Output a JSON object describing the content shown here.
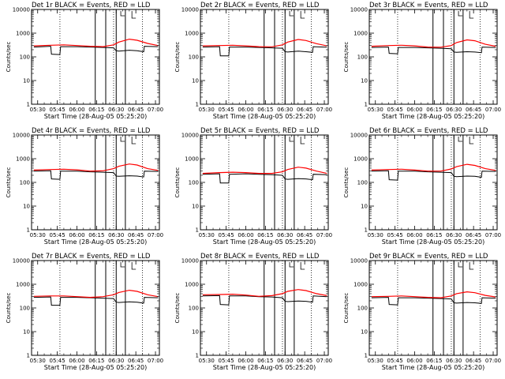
{
  "chart_data": {
    "type": "line",
    "layout": "3x3 grid",
    "xlabel": "Start Time (28-Aug-05 05:25:20)",
    "ylabel": "Counts/sec",
    "yscale": "log",
    "ylim": [
      1,
      10000
    ],
    "y_ticks": [
      "1",
      "10",
      "100",
      "1000",
      "10000"
    ],
    "x_ticks": [
      "05:30",
      "05:45",
      "06:00",
      "06:15",
      "06:30",
      "06:45",
      "07:00"
    ],
    "x_minutes": [
      0,
      15,
      30,
      45,
      60,
      75,
      90
    ],
    "xlim_minutes": [
      -4.67,
      93
    ],
    "solid_lines_minutes": [
      44,
      52,
      60,
      67
    ],
    "dotted_lines_minutes": [
      17,
      58,
      80
    ],
    "colors": {
      "events": "#000000",
      "lld": "#ff0000"
    },
    "series_names": [
      "BLACK = Events",
      "RED = LLD"
    ],
    "panels": [
      {
        "title": "Det 1r BLACK = Events, RED = LLD",
        "lld": [
          [
            -3,
            290
          ],
          [
            10,
            310
          ],
          [
            20,
            320
          ],
          [
            30,
            300
          ],
          [
            40,
            280
          ],
          [
            50,
            270
          ],
          [
            58,
            320
          ],
          [
            62,
            420
          ],
          [
            70,
            560
          ],
          [
            76,
            500
          ],
          [
            84,
            370
          ],
          [
            92,
            300
          ]
        ],
        "events": [
          [
            -3,
            260
          ],
          [
            10,
            280
          ],
          [
            10.5,
            130
          ],
          [
            17,
            125
          ],
          [
            17.5,
            270
          ],
          [
            30,
            270
          ],
          [
            40,
            260
          ],
          [
            50,
            250
          ],
          [
            58,
            240
          ],
          [
            60,
            180
          ],
          [
            62,
            175
          ],
          [
            70,
            190
          ],
          [
            76,
            180
          ],
          [
            81,
            165
          ],
          [
            81.5,
            280
          ],
          [
            92,
            270
          ]
        ]
      },
      {
        "title": "Det 2r BLACK = Events, RED = LLD",
        "lld": [
          [
            -3,
            290
          ],
          [
            10,
            300
          ],
          [
            20,
            310
          ],
          [
            30,
            290
          ],
          [
            40,
            270
          ],
          [
            50,
            265
          ],
          [
            58,
            320
          ],
          [
            62,
            420
          ],
          [
            70,
            540
          ],
          [
            76,
            490
          ],
          [
            84,
            360
          ],
          [
            92,
            290
          ]
        ],
        "events": [
          [
            -3,
            260
          ],
          [
            10,
            270
          ],
          [
            10.5,
            110
          ],
          [
            17,
            110
          ],
          [
            17.5,
            260
          ],
          [
            30,
            260
          ],
          [
            40,
            250
          ],
          [
            50,
            240
          ],
          [
            58,
            230
          ],
          [
            60,
            165
          ],
          [
            62,
            160
          ],
          [
            70,
            175
          ],
          [
            76,
            165
          ],
          [
            81,
            155
          ],
          [
            81.5,
            270
          ],
          [
            92,
            255
          ]
        ]
      },
      {
        "title": "Det 3r BLACK = Events, RED = LLD",
        "lld": [
          [
            -3,
            280
          ],
          [
            10,
            300
          ],
          [
            20,
            310
          ],
          [
            30,
            290
          ],
          [
            40,
            260
          ],
          [
            50,
            255
          ],
          [
            58,
            300
          ],
          [
            62,
            400
          ],
          [
            70,
            520
          ],
          [
            76,
            480
          ],
          [
            84,
            340
          ],
          [
            92,
            280
          ]
        ],
        "events": [
          [
            -3,
            250
          ],
          [
            10,
            260
          ],
          [
            10.5,
            140
          ],
          [
            17,
            135
          ],
          [
            17.5,
            250
          ],
          [
            30,
            250
          ],
          [
            40,
            240
          ],
          [
            50,
            230
          ],
          [
            58,
            220
          ],
          [
            60,
            160
          ],
          [
            62,
            155
          ],
          [
            70,
            165
          ],
          [
            76,
            160
          ],
          [
            81,
            150
          ],
          [
            81.5,
            260
          ],
          [
            92,
            250
          ]
        ]
      },
      {
        "title": "Det 4r BLACK = Events, RED = LLD",
        "lld": [
          [
            -3,
            330
          ],
          [
            10,
            350
          ],
          [
            20,
            360
          ],
          [
            30,
            340
          ],
          [
            40,
            300
          ],
          [
            50,
            310
          ],
          [
            58,
            380
          ],
          [
            62,
            480
          ],
          [
            70,
            600
          ],
          [
            76,
            540
          ],
          [
            84,
            380
          ],
          [
            92,
            320
          ]
        ],
        "events": [
          [
            -3,
            300
          ],
          [
            10,
            310
          ],
          [
            10.5,
            140
          ],
          [
            17,
            135
          ],
          [
            17.5,
            300
          ],
          [
            30,
            300
          ],
          [
            40,
            280
          ],
          [
            50,
            270
          ],
          [
            58,
            260
          ],
          [
            60,
            185
          ],
          [
            62,
            180
          ],
          [
            70,
            190
          ],
          [
            76,
            185
          ],
          [
            81,
            170
          ],
          [
            81.5,
            300
          ],
          [
            92,
            290
          ]
        ]
      },
      {
        "title": "Det 5r BLACK = Events, RED = LLD",
        "lld": [
          [
            -3,
            240
          ],
          [
            10,
            260
          ],
          [
            20,
            270
          ],
          [
            30,
            260
          ],
          [
            40,
            240
          ],
          [
            50,
            240
          ],
          [
            58,
            280
          ],
          [
            62,
            350
          ],
          [
            70,
            440
          ],
          [
            76,
            400
          ],
          [
            84,
            300
          ],
          [
            92,
            240
          ]
        ],
        "events": [
          [
            -3,
            220
          ],
          [
            10,
            230
          ],
          [
            10.5,
            95
          ],
          [
            17,
            95
          ],
          [
            17.5,
            220
          ],
          [
            30,
            230
          ],
          [
            40,
            220
          ],
          [
            50,
            210
          ],
          [
            58,
            200
          ],
          [
            60,
            140
          ],
          [
            62,
            135
          ],
          [
            70,
            145
          ],
          [
            76,
            140
          ],
          [
            81,
            130
          ],
          [
            81.5,
            220
          ],
          [
            92,
            210
          ]
        ]
      },
      {
        "title": "Det 6r BLACK = Events, RED = LLD",
        "lld": [
          [
            -3,
            330
          ],
          [
            10,
            350
          ],
          [
            20,
            360
          ],
          [
            30,
            330
          ],
          [
            40,
            300
          ],
          [
            50,
            300
          ],
          [
            58,
            370
          ],
          [
            62,
            460
          ],
          [
            70,
            580
          ],
          [
            76,
            520
          ],
          [
            84,
            380
          ],
          [
            92,
            320
          ]
        ],
        "events": [
          [
            -3,
            300
          ],
          [
            10,
            310
          ],
          [
            10.5,
            130
          ],
          [
            17,
            125
          ],
          [
            17.5,
            300
          ],
          [
            30,
            300
          ],
          [
            40,
            280
          ],
          [
            50,
            270
          ],
          [
            58,
            260
          ],
          [
            60,
            180
          ],
          [
            62,
            175
          ],
          [
            70,
            185
          ],
          [
            76,
            180
          ],
          [
            81,
            165
          ],
          [
            81.5,
            300
          ],
          [
            92,
            290
          ]
        ]
      },
      {
        "title": "Det 7r BLACK = Events, RED = LLD",
        "lld": [
          [
            -3,
            310
          ],
          [
            10,
            320
          ],
          [
            20,
            320
          ],
          [
            30,
            300
          ],
          [
            40,
            280
          ],
          [
            50,
            300
          ],
          [
            58,
            360
          ],
          [
            62,
            450
          ],
          [
            70,
            560
          ],
          [
            76,
            500
          ],
          [
            84,
            360
          ],
          [
            92,
            300
          ]
        ],
        "events": [
          [
            -3,
            280
          ],
          [
            10,
            290
          ],
          [
            10.5,
            130
          ],
          [
            17,
            130
          ],
          [
            17.5,
            280
          ],
          [
            30,
            280
          ],
          [
            40,
            270
          ],
          [
            50,
            260
          ],
          [
            58,
            250
          ],
          [
            60,
            175
          ],
          [
            62,
            170
          ],
          [
            70,
            180
          ],
          [
            76,
            175
          ],
          [
            81,
            160
          ],
          [
            81.5,
            280
          ],
          [
            92,
            270
          ]
        ]
      },
      {
        "title": "Det 8r BLACK = Events, RED = LLD",
        "lld": [
          [
            -3,
            360
          ],
          [
            10,
            370
          ],
          [
            20,
            380
          ],
          [
            30,
            350
          ],
          [
            40,
            310
          ],
          [
            50,
            330
          ],
          [
            58,
            400
          ],
          [
            62,
            500
          ],
          [
            70,
            600
          ],
          [
            76,
            540
          ],
          [
            84,
            400
          ],
          [
            92,
            330
          ]
        ],
        "events": [
          [
            -3,
            320
          ],
          [
            10,
            330
          ],
          [
            10.5,
            140
          ],
          [
            17,
            135
          ],
          [
            17.5,
            320
          ],
          [
            30,
            320
          ],
          [
            40,
            300
          ],
          [
            50,
            290
          ],
          [
            58,
            270
          ],
          [
            60,
            190
          ],
          [
            62,
            185
          ],
          [
            70,
            195
          ],
          [
            76,
            190
          ],
          [
            81,
            175
          ],
          [
            81.5,
            320
          ],
          [
            92,
            300
          ]
        ]
      },
      {
        "title": "Det 9r BLACK = Events, RED = LLD",
        "lld": [
          [
            -3,
            300
          ],
          [
            10,
            310
          ],
          [
            20,
            320
          ],
          [
            30,
            300
          ],
          [
            40,
            280
          ],
          [
            50,
            270
          ],
          [
            58,
            320
          ],
          [
            62,
            400
          ],
          [
            70,
            480
          ],
          [
            76,
            440
          ],
          [
            84,
            340
          ],
          [
            92,
            290
          ]
        ],
        "events": [
          [
            -3,
            270
          ],
          [
            10,
            280
          ],
          [
            10.5,
            140
          ],
          [
            17,
            135
          ],
          [
            17.5,
            270
          ],
          [
            30,
            270
          ],
          [
            40,
            260
          ],
          [
            50,
            250
          ],
          [
            58,
            240
          ],
          [
            60,
            165
          ],
          [
            62,
            160
          ],
          [
            70,
            170
          ],
          [
            76,
            165
          ],
          [
            81,
            155
          ],
          [
            81.5,
            270
          ],
          [
            92,
            260
          ]
        ]
      }
    ]
  }
}
